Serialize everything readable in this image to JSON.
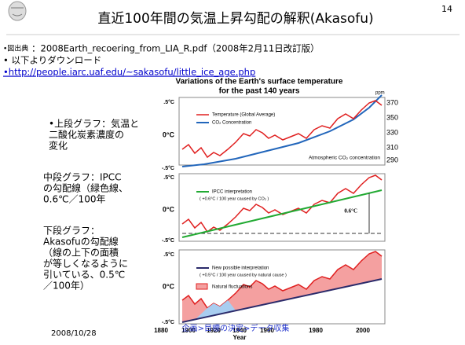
{
  "header": {
    "title": "直近100年間の気温上昇勾配の解釈(Akasofu)",
    "page": "14"
  },
  "source": {
    "label": "•図出典",
    "file": "：2008Earth_recoering_from_LIA_R.pdf（2008年2月11日改訂版）",
    "download": "• 以下よりダウンロード",
    "link": "•http://people.iarc.uaf.edu/~sakasofu/little_ice_age.php"
  },
  "notes": [
    [
      "•上段グラフ：気温と",
      "二酸化炭素濃度の",
      "変化"
    ],
    [
      "中段グラフ：IPCC",
      "の勾配線（緑色線、",
      "0.6℃／100年"
    ],
    [
      "下段グラフ：",
      "Akasofuの勾配線",
      "（線の上下の面積",
      "が等しくなるように",
      "引いている、0.5℃",
      "／100年）"
    ]
  ],
  "figure": {
    "title": [
      "Variations of the Earth's surface temperature",
      "for the past 140 years"
    ],
    "temp_labels": [
      ".5°C",
      "0°C",
      "-.5°C"
    ],
    "ppm_unit": "ppm",
    "ppm_labels": [
      "370",
      "350",
      "330",
      "310",
      "290"
    ],
    "panel1": {
      "legend": [
        "Temperature (Global Average)",
        "CO₂ Concentration"
      ],
      "note": "Atmospheric CO₂ concentration"
    },
    "panel2": {
      "legend": [
        "IPCC interpretation",
        "( +0.6°C / 100 year caused by CO₂ )"
      ],
      "note": "0.6°C"
    },
    "panel3": {
      "legend": [
        "New possible interpretation",
        "( +0.5°C / 100 year caused by natural cause )",
        "Natural fluctuations"
      ]
    },
    "years": [
      "1880",
      "1900",
      "1920",
      "1940",
      "1960",
      "1980",
      "2000"
    ],
    "xlabel": "Year"
  },
  "footer": {
    "date": "2008/10/28",
    "nav": "企画>目標の決定>データ収集"
  }
}
